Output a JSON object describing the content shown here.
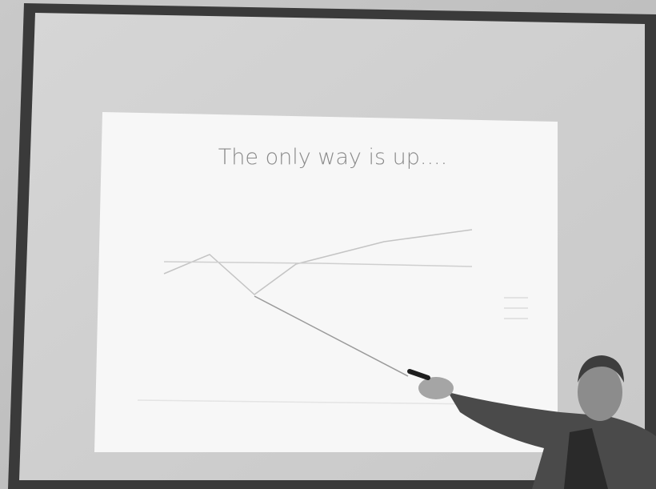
{
  "slide": {
    "title": "The only way is up...."
  }
}
